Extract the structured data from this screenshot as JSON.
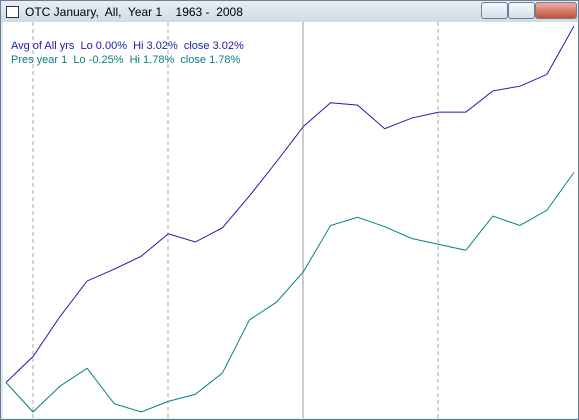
{
  "window": {
    "title": "OTC January,  All,  Year 1    1963 -  2008"
  },
  "chart_data": {
    "type": "line",
    "series": [
      {
        "name": "Avg of All yrs  Lo 0.00%  Hi 3.02%  close 3.02%",
        "color": "#1c1ca8",
        "values": [
          0,
          0.22,
          0.56,
          0.86,
          0.96,
          1.07,
          1.26,
          1.19,
          1.31,
          1.58,
          1.87,
          2.17,
          2.37,
          2.35,
          2.15,
          2.24,
          2.29,
          2.29,
          2.47,
          2.51,
          2.61,
          3.02
        ]
      },
      {
        "name": "Pres year 1  Lo -0.25%  Hi 1.78%  close 1.78%",
        "color": "#0a8080",
        "values": [
          0,
          -0.25,
          -0.03,
          0.12,
          -0.18,
          -0.25,
          -0.16,
          -0.1,
          0.08,
          0.53,
          0.68,
          0.94,
          1.33,
          1.4,
          1.32,
          1.22,
          1.17,
          1.12,
          1.41,
          1.33,
          1.46,
          1.78
        ]
      }
    ]
  }
}
